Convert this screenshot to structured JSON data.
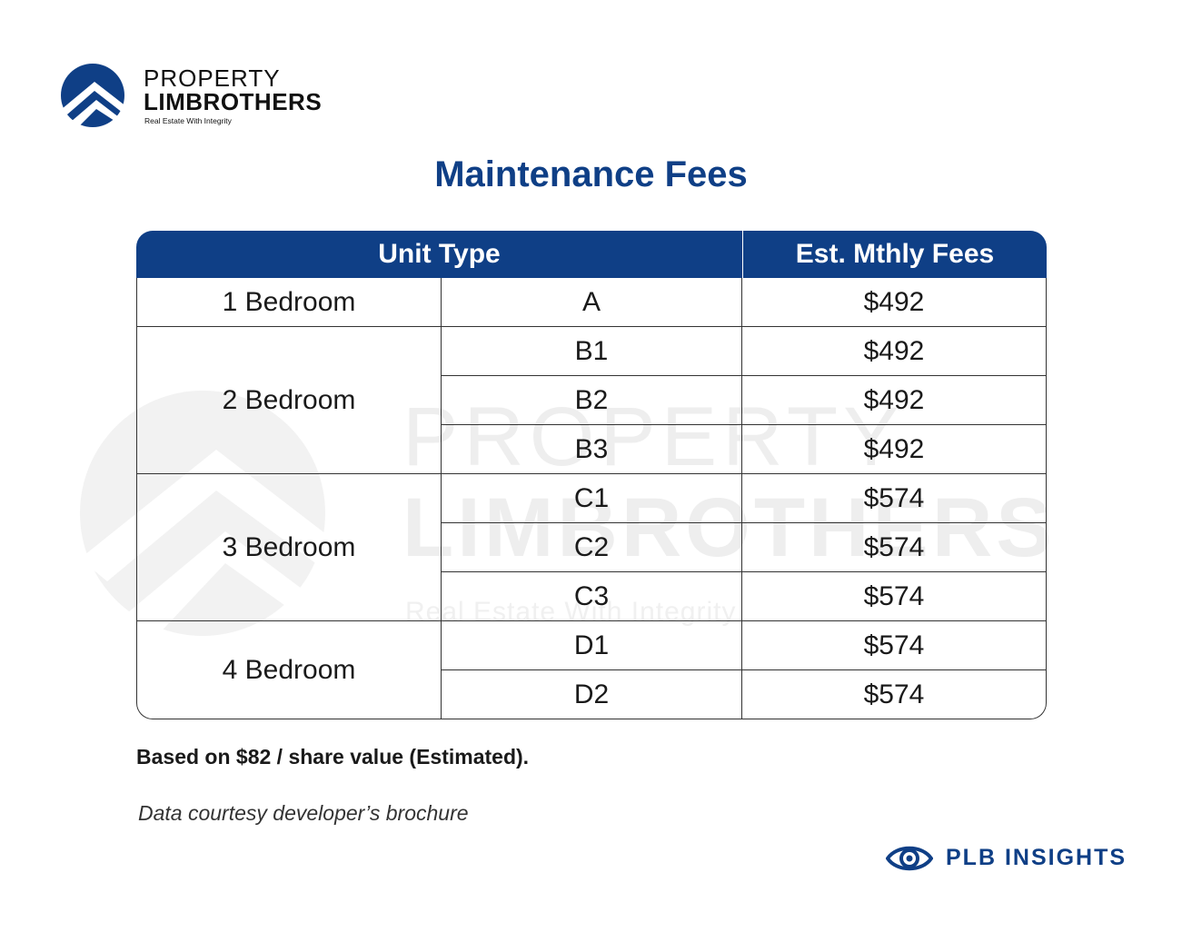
{
  "brand": {
    "name_line1": "PROPERTY",
    "name_line2": "LIMBROTHERS",
    "tagline": "Real Estate With Integrity",
    "color": "#0f3f86"
  },
  "watermark": {
    "line1": "PROPERTY",
    "line2": "LIMBROTHERS",
    "line3": "Real Estate With Integrity"
  },
  "title": "Maintenance Fees",
  "table": {
    "headers": {
      "unit_type": "Unit Type",
      "fees": "Est. Mthly Fees"
    },
    "groups": [
      {
        "unit_type": "1 Bedroom",
        "rows": [
          {
            "type": "A",
            "fee": "$492"
          }
        ]
      },
      {
        "unit_type": "2 Bedroom",
        "rows": [
          {
            "type": "B1",
            "fee": "$492"
          },
          {
            "type": "B2",
            "fee": "$492"
          },
          {
            "type": "B3",
            "fee": "$492"
          }
        ]
      },
      {
        "unit_type": "3 Bedroom",
        "rows": [
          {
            "type": "C1",
            "fee": "$574"
          },
          {
            "type": "C2",
            "fee": "$574"
          },
          {
            "type": "C3",
            "fee": "$574"
          }
        ]
      },
      {
        "unit_type": "4 Bedroom",
        "rows": [
          {
            "type": "D1",
            "fee": "$574"
          },
          {
            "type": "D2",
            "fee": "$574"
          }
        ]
      }
    ]
  },
  "note": "Based on $82 / share value (Estimated).",
  "source": "Data courtesy developer’s brochure",
  "insights_badge": "PLB INSIGHTS"
}
